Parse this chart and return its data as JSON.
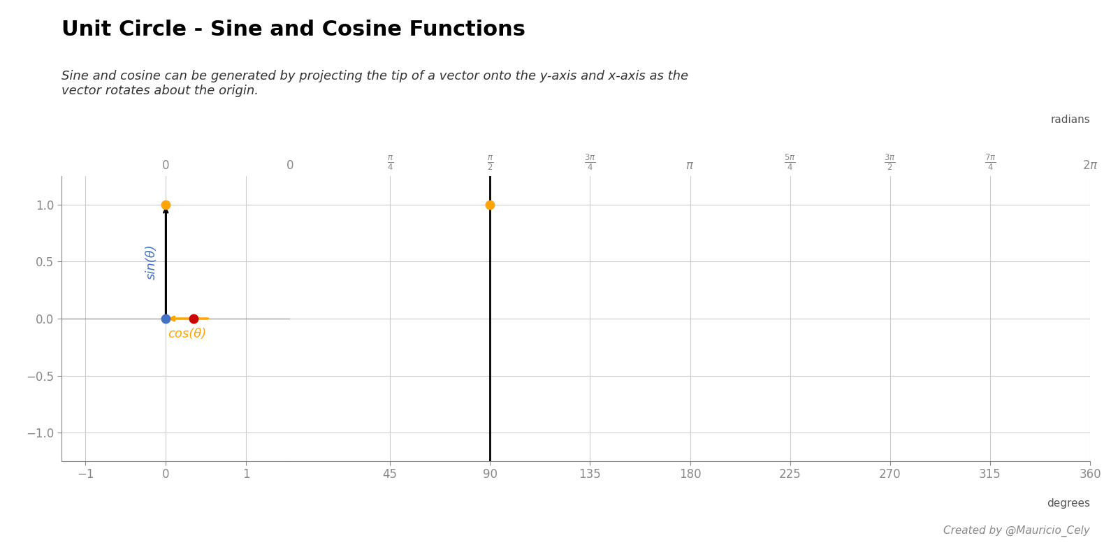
{
  "title": "Unit Circle - Sine and Cosine Functions",
  "subtitle": "Sine and cosine can be generated by projecting the tip of a vector onto the y-axis and x-axis as the\nvector rotates about the origin.",
  "theta_deg": 90,
  "background_color": "#ffffff",
  "vector_color": "#000000",
  "sin_color": "#4472c4",
  "cos_color": "#FFA500",
  "sin_dot_color": "#cc0000",
  "cos_dot_color": "#4472c4",
  "tip_dot_color": "#FFA500",
  "sin_label": "sin(θ)",
  "cos_label": "cos(θ)",
  "creator": "Created by @Mauricio_Cely",
  "deg_ticks": [
    0,
    45,
    90,
    135,
    180,
    225,
    270,
    315,
    360
  ],
  "ylim": [
    -1.25,
    1.25
  ],
  "yticks": [
    -1.0,
    -0.5,
    0.0,
    0.5,
    1.0
  ],
  "circle_xticks": [
    -1,
    0,
    1
  ],
  "wave_xticks": [
    45,
    90,
    135,
    180,
    225,
    270,
    315,
    360
  ],
  "figsize": [
    16.0,
    8.0
  ],
  "dpi": 100,
  "grid_color": "#cccccc",
  "tick_color": "#888888",
  "label_color": "#555555",
  "spine_color": "#888888"
}
